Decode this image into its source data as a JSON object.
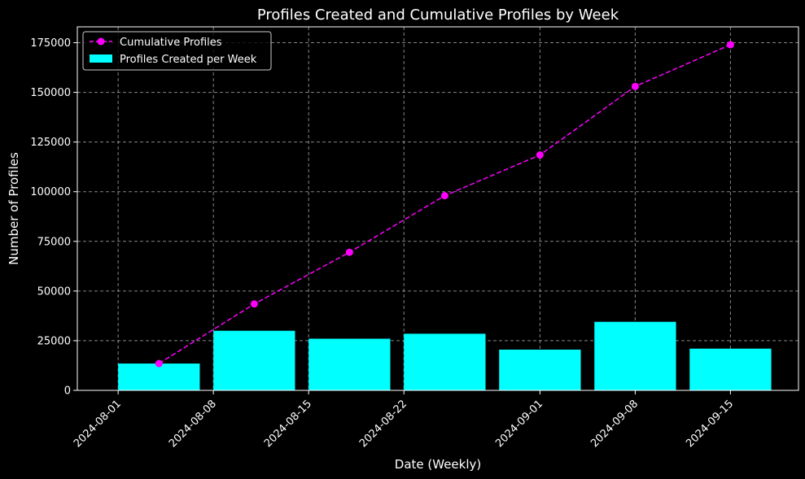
{
  "chart_data": {
    "type": "bar",
    "title": "Profiles Created and Cumulative Profiles by Week",
    "xlabel": "Date (Weekly)",
    "ylabel": "Number of Profiles",
    "x_ticks": [
      "2024-08-01",
      "2024-08-08",
      "2024-08-15",
      "2024-08-22",
      "2024-09-01",
      "2024-09-08",
      "2024-09-15"
    ],
    "x_tick_rotation_deg": 45,
    "x_range": [
      "2024-07-29",
      "2024-09-20"
    ],
    "ylim": [
      0,
      183000
    ],
    "y_ticks": [
      0,
      25000,
      50000,
      75000,
      100000,
      125000,
      150000,
      175000
    ],
    "grid": true,
    "grid_style": "dashed",
    "legend_position": "top-left",
    "background_color": "#000000",
    "series": [
      {
        "name": "Cumulative Profiles",
        "type": "line",
        "style": "dashed",
        "marker": "circle",
        "color": "#ff00ff",
        "points": [
          {
            "x": "2024-08-04",
            "y": 13500
          },
          {
            "x": "2024-08-11",
            "y": 43500
          },
          {
            "x": "2024-08-18",
            "y": 69500
          },
          {
            "x": "2024-08-25",
            "y": 98000
          },
          {
            "x": "2024-09-01",
            "y": 118500
          },
          {
            "x": "2024-09-08",
            "y": 153000
          },
          {
            "x": "2024-09-15",
            "y": 174000
          }
        ]
      },
      {
        "name": "Profiles Created per Week",
        "type": "bar",
        "color": "#00ffff",
        "points": [
          {
            "x": "2024-08-04",
            "y": 13500
          },
          {
            "x": "2024-08-11",
            "y": 30000
          },
          {
            "x": "2024-08-18",
            "y": 26000
          },
          {
            "x": "2024-08-25",
            "y": 28500
          },
          {
            "x": "2024-09-01",
            "y": 20500
          },
          {
            "x": "2024-09-08",
            "y": 34500
          },
          {
            "x": "2024-09-15",
            "y": 21000
          }
        ]
      }
    ]
  }
}
